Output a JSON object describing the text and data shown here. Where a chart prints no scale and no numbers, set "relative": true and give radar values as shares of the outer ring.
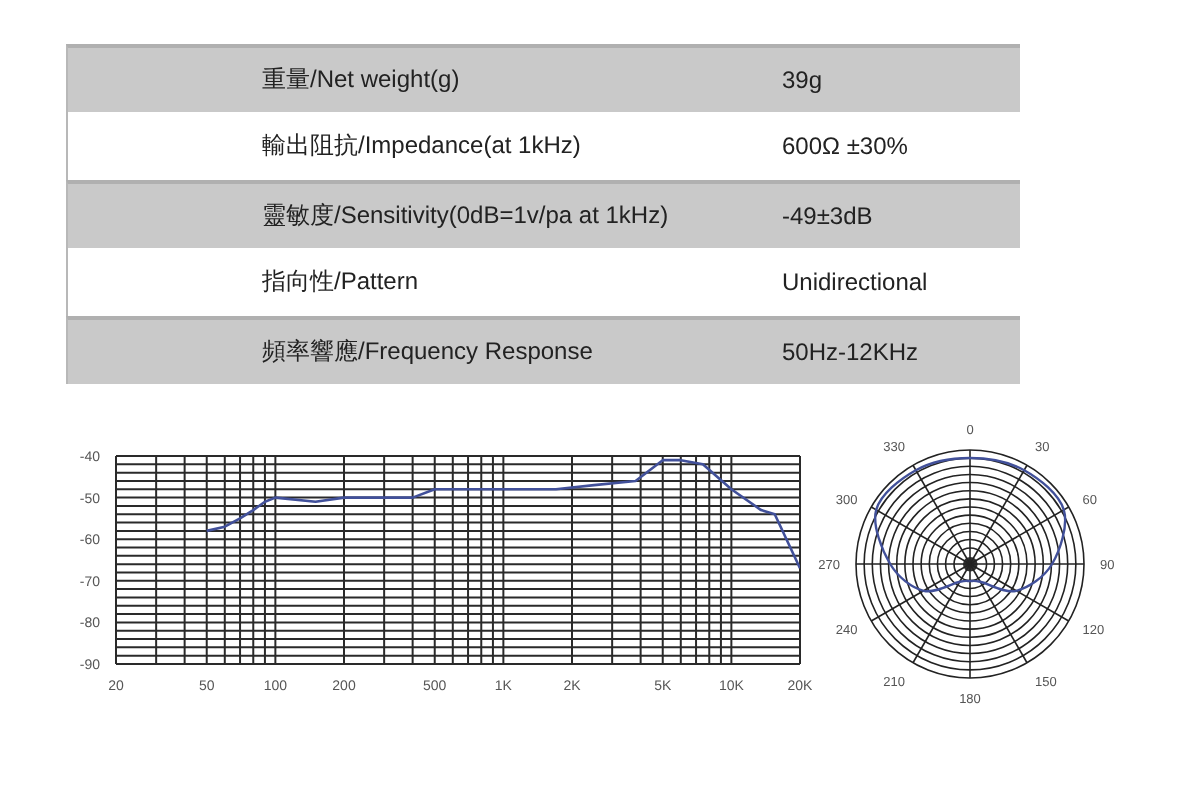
{
  "chart_data": [
    {
      "type": "other",
      "annotations": [
        "重量/Net weight(g)",
        "39g",
        "輸出阻抗/Impedance(at 1kHz)",
        "600Ω ±30%",
        "靈敏度/Sensitivity(0dB=1v/pa at 1kHz)",
        "-49±3dB",
        "指向性/Pattern",
        "Unidirectional",
        "頻率響應/Frequency Response",
        "50Hz-12KHz"
      ]
    },
    {
      "type": "line",
      "x": [
        50,
        60,
        70,
        80,
        90,
        100,
        150,
        200,
        300,
        400,
        500,
        1000,
        1700,
        2500,
        3800,
        5000,
        6000,
        7500,
        10000,
        13500,
        15500,
        20000
      ],
      "values": [
        -58,
        -57,
        -55,
        -53,
        -51,
        -50,
        -51,
        -50,
        -50,
        -50,
        -48,
        -48,
        -48,
        -47,
        -46,
        -41,
        -41,
        -42,
        -48,
        -53,
        -54,
        -67
      ],
      "color": "#41509a",
      "xlim": [
        20,
        20000
      ],
      "xticks": [
        20,
        {
          "value": 30,
          "label": null
        },
        {
          "value": 40,
          "label": null
        },
        50,
        {
          "value": 60,
          "label": null
        },
        {
          "value": 70,
          "label": null
        },
        {
          "value": 80,
          "label": null
        },
        {
          "value": 90,
          "label": null
        },
        100,
        200,
        {
          "value": 300,
          "label": null
        },
        {
          "value": 400,
          "label": null
        },
        500,
        {
          "value": 600,
          "label": null
        },
        {
          "value": 700,
          "label": null
        },
        {
          "value": 800,
          "label": null
        },
        {
          "value": 900,
          "label": null
        },
        {
          "value": 1000,
          "label": "1K"
        },
        {
          "value": 2000,
          "label": "2K"
        },
        {
          "value": 3000,
          "label": null
        },
        {
          "value": 4000,
          "label": null
        },
        {
          "value": 5000,
          "label": "5K"
        },
        {
          "value": 6000,
          "label": null
        },
        {
          "value": 7000,
          "label": null
        },
        {
          "value": 8000,
          "label": null
        },
        {
          "value": 9000,
          "label": null
        },
        {
          "value": 10000,
          "label": "10K"
        },
        {
          "value": 20000,
          "label": "20K"
        }
      ],
      "ylim": [
        -90,
        -40
      ],
      "yticks": [
        -90,
        {
          "value": -88,
          "label": null
        },
        {
          "value": -86,
          "label": null
        },
        {
          "value": -84,
          "label": null
        },
        {
          "value": -82,
          "label": null
        },
        -80,
        {
          "value": -78,
          "label": null
        },
        {
          "value": -76,
          "label": null
        },
        {
          "value": -74,
          "label": null
        },
        {
          "value": -72,
          "label": null
        },
        -70,
        {
          "value": -68,
          "label": null
        },
        {
          "value": -66,
          "label": null
        },
        {
          "value": -64,
          "label": null
        },
        {
          "value": -62,
          "label": null
        },
        -60,
        {
          "value": -58,
          "label": null
        },
        {
          "value": -56,
          "label": null
        },
        {
          "value": -54,
          "label": null
        },
        {
          "value": -52,
          "label": null
        },
        -50,
        {
          "value": -48,
          "label": null
        },
        {
          "value": -46,
          "label": null
        },
        {
          "value": -44,
          "label": null
        },
        {
          "value": -42,
          "label": null
        },
        -40
      ],
      "log": "x",
      "grid": true,
      "marker": "none"
    },
    {
      "type": "radar",
      "categories": [
        "0",
        "30",
        "60",
        "90",
        "120",
        "150",
        "180",
        "210",
        "240",
        "270",
        "300",
        "330"
      ],
      "values": [
        0.93,
        0.95,
        0.95,
        0.72,
        0.47,
        0.18,
        0.15,
        0.18,
        0.47,
        0.7,
        0.95,
        0.95
      ],
      "color": "#41509a",
      "relative": true,
      "grid": true
    }
  ]
}
